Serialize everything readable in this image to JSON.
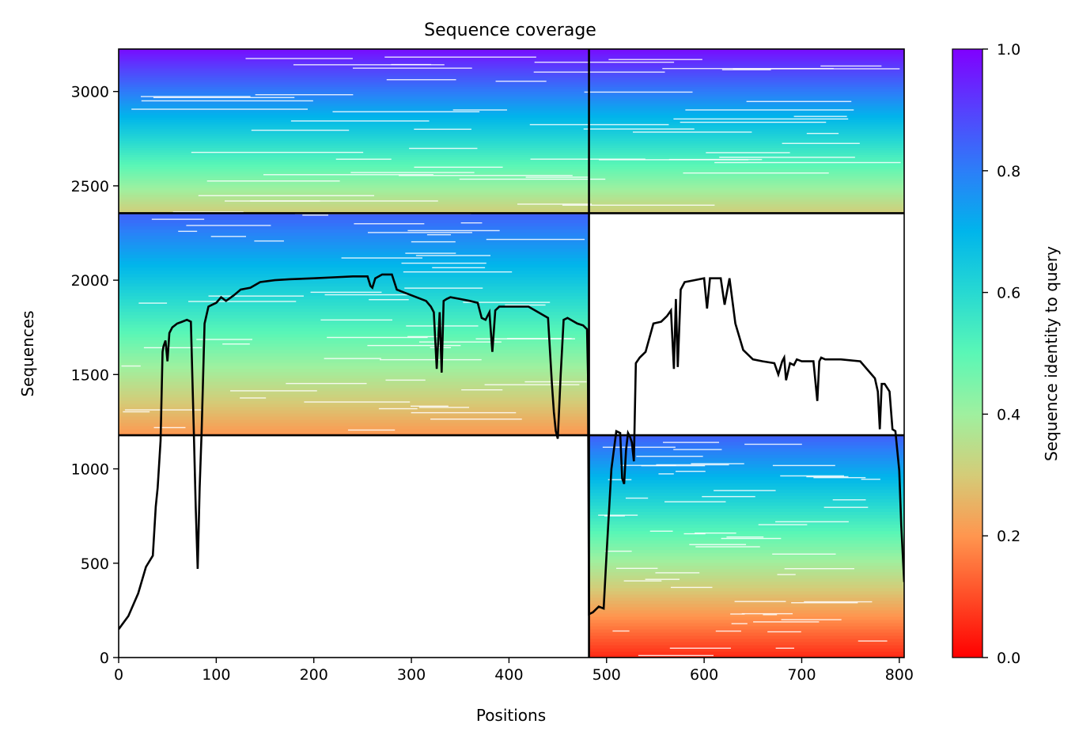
{
  "chart_data": {
    "type": "heatmap",
    "title": "Sequence coverage",
    "xlabel": "Positions",
    "ylabel": "Sequences",
    "xlim": [
      0,
      805
    ],
    "ylim": [
      0,
      3225
    ],
    "x_ticks": [
      0,
      100,
      200,
      300,
      400,
      500,
      600,
      700,
      800
    ],
    "y_ticks": [
      0,
      500,
      1000,
      1500,
      2000,
      2500,
      3000
    ],
    "colorbar": {
      "label": "Sequence identity to query",
      "range": [
        0.0,
        1.0
      ],
      "ticks": [
        "0.0",
        "0.2",
        "0.4",
        "0.6",
        "0.8",
        "1.0"
      ],
      "colormap": "rainbow_r"
    },
    "block_boundaries": {
      "chain_break_position": 482,
      "group_boundaries": [
        1178,
        2355
      ]
    },
    "coverage_blocks": [
      {
        "name": "paired-msa",
        "x": [
          0,
          805
        ],
        "seq_range": [
          2355,
          3225
        ],
        "identity_range": [
          0.3,
          0.98
        ]
      },
      {
        "name": "chain-A-unpaired",
        "x": [
          0,
          482
        ],
        "seq_range": [
          1178,
          2355
        ],
        "identity_range": [
          0.2,
          0.85
        ]
      },
      {
        "name": "chain-B-unpaired",
        "x": [
          482,
          805
        ],
        "seq_range": [
          0,
          1178
        ],
        "identity_range": [
          0.05,
          0.85
        ]
      }
    ],
    "coverage_curve": {
      "name": "coverage",
      "x": [
        0,
        10,
        20,
        28,
        35,
        38,
        40,
        43,
        45,
        46,
        48,
        50,
        52,
        55,
        60,
        65,
        70,
        74,
        77,
        79,
        81,
        83,
        85,
        88,
        92,
        96,
        100,
        105,
        110,
        118,
        125,
        135,
        145,
        160,
        175,
        200,
        220,
        240,
        255,
        258,
        260,
        263,
        270,
        280,
        285,
        290,
        300,
        315,
        320,
        323,
        326,
        329,
        331,
        333,
        336,
        340,
        350,
        360,
        368,
        372,
        376,
        380,
        383,
        386,
        390,
        400,
        420,
        440,
        444,
        446,
        448,
        450,
        453,
        456,
        460,
        470,
        476,
        480,
        481,
        482,
        486,
        492,
        497,
        500,
        505,
        510,
        514,
        516,
        518,
        520,
        522,
        524,
        526,
        528,
        530,
        534,
        540,
        548,
        556,
        562,
        566,
        569,
        571,
        573,
        576,
        580,
        590,
        600,
        603,
        606,
        612,
        617,
        621,
        626,
        632,
        640,
        650,
        660,
        672,
        676,
        680,
        682,
        684,
        688,
        692,
        695,
        700,
        712,
        716,
        718,
        720,
        724,
        740,
        760,
        775,
        778,
        780,
        782,
        785,
        790,
        793,
        796,
        800,
        802,
        805
      ],
      "y": [
        150,
        220,
        340,
        480,
        540,
        800,
        900,
        1150,
        1620,
        1650,
        1680,
        1570,
        1720,
        1750,
        1770,
        1780,
        1790,
        1780,
        1200,
        800,
        470,
        900,
        1200,
        1770,
        1860,
        1870,
        1880,
        1910,
        1890,
        1920,
        1950,
        1960,
        1990,
        2000,
        2005,
        2010,
        2015,
        2020,
        2020,
        1970,
        1960,
        2010,
        2030,
        2030,
        1950,
        1940,
        1920,
        1890,
        1860,
        1830,
        1530,
        1830,
        1510,
        1890,
        1900,
        1910,
        1900,
        1890,
        1880,
        1800,
        1790,
        1830,
        1620,
        1840,
        1860,
        1860,
        1860,
        1800,
        1450,
        1300,
        1200,
        1160,
        1500,
        1790,
        1800,
        1770,
        1760,
        1740,
        1500,
        230,
        240,
        270,
        260,
        550,
        1000,
        1200,
        1190,
        950,
        920,
        1100,
        1190,
        1170,
        1140,
        1040,
        1560,
        1590,
        1620,
        1770,
        1780,
        1810,
        1840,
        1530,
        1900,
        1540,
        1950,
        1990,
        2000,
        2010,
        1850,
        2010,
        2010,
        2010,
        1870,
        2010,
        1770,
        1630,
        1580,
        1570,
        1560,
        1500,
        1570,
        1590,
        1470,
        1560,
        1550,
        1580,
        1570,
        1570,
        1360,
        1570,
        1590,
        1580,
        1580,
        1570,
        1480,
        1410,
        1210,
        1450,
        1450,
        1410,
        1210,
        1200,
        990,
        700,
        400
      ]
    }
  }
}
